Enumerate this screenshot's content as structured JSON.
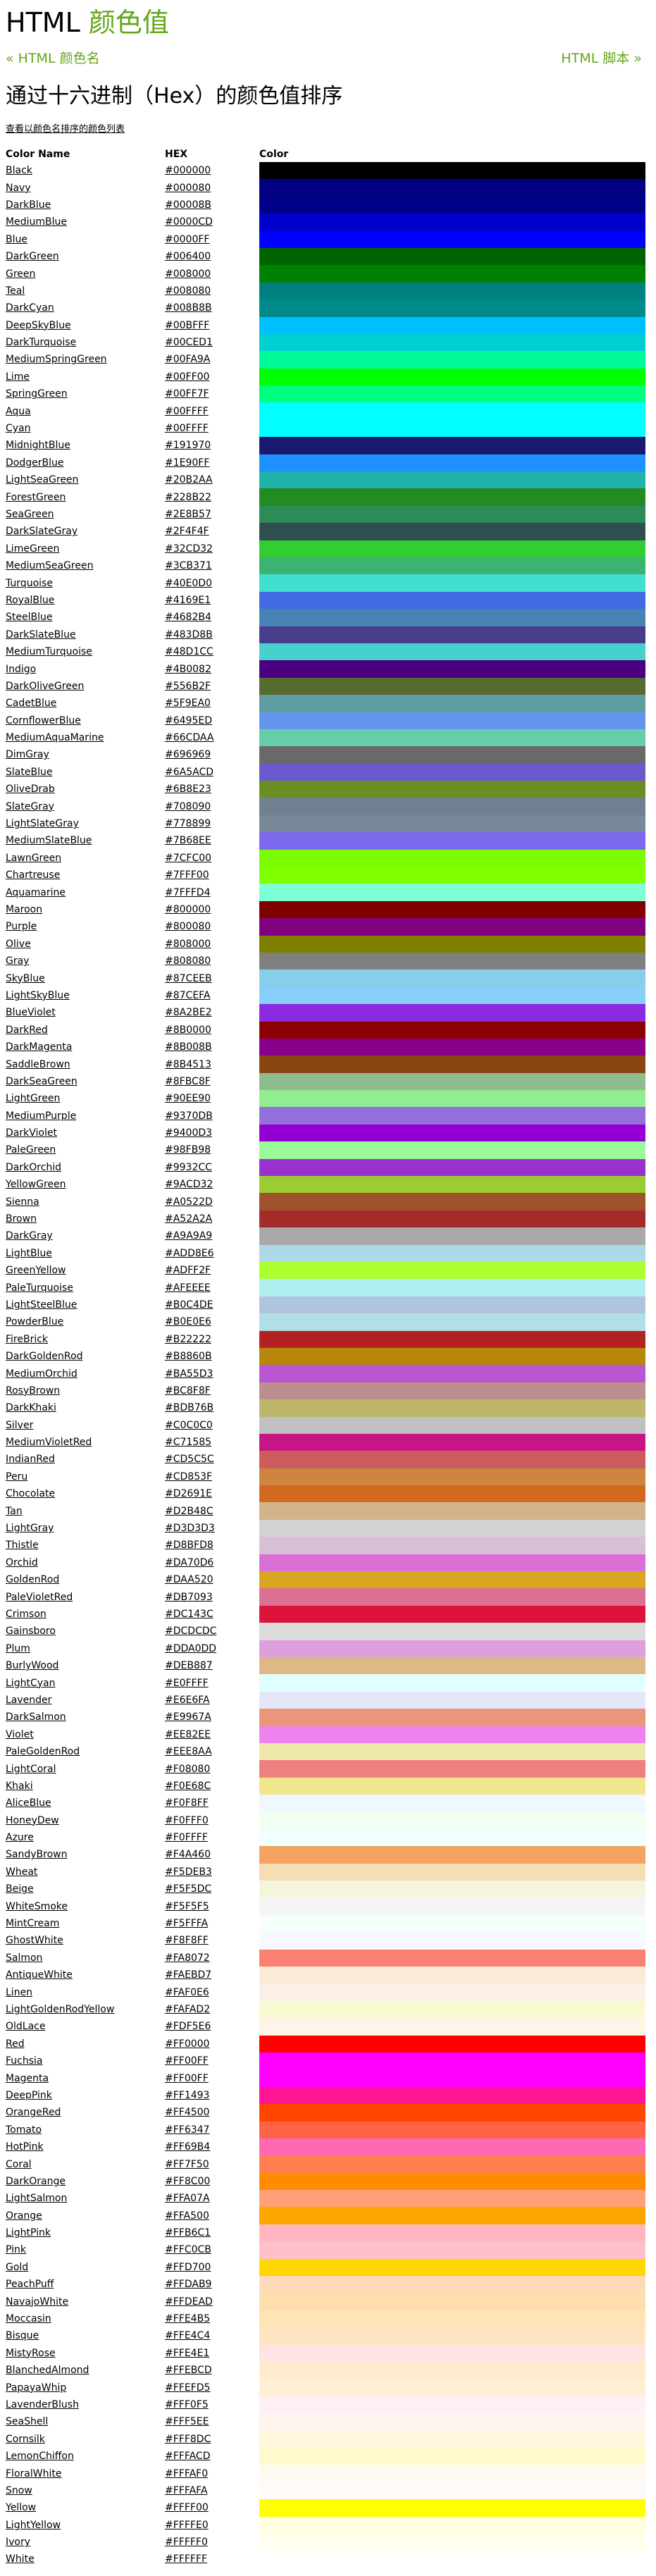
{
  "heading": {
    "prefix": "HTML ",
    "accent": "颜色值"
  },
  "nav": {
    "prev": "« HTML 颜色名",
    "next": "HTML 脚本 »"
  },
  "subtitle": "通过十六进制（Hex）的颜色值排序",
  "view_by_name_link": "查看以颜色名排序的颜色列表",
  "table": {
    "headers": [
      "Color Name",
      "HEX",
      "Color"
    ]
  },
  "colors": [
    {
      "name": "Black",
      "hex": "#000000"
    },
    {
      "name": "Navy",
      "hex": "#000080"
    },
    {
      "name": "DarkBlue",
      "hex": "#00008B"
    },
    {
      "name": "MediumBlue",
      "hex": "#0000CD"
    },
    {
      "name": "Blue",
      "hex": "#0000FF"
    },
    {
      "name": "DarkGreen",
      "hex": "#006400"
    },
    {
      "name": "Green",
      "hex": "#008000"
    },
    {
      "name": "Teal",
      "hex": "#008080"
    },
    {
      "name": "DarkCyan",
      "hex": "#008B8B"
    },
    {
      "name": "DeepSkyBlue",
      "hex": "#00BFFF"
    },
    {
      "name": "DarkTurquoise",
      "hex": "#00CED1"
    },
    {
      "name": "MediumSpringGreen",
      "hex": "#00FA9A"
    },
    {
      "name": "Lime",
      "hex": "#00FF00"
    },
    {
      "name": "SpringGreen",
      "hex": "#00FF7F"
    },
    {
      "name": "Aqua",
      "hex": "#00FFFF"
    },
    {
      "name": "Cyan",
      "hex": "#00FFFF"
    },
    {
      "name": "MidnightBlue",
      "hex": "#191970"
    },
    {
      "name": "DodgerBlue",
      "hex": "#1E90FF"
    },
    {
      "name": "LightSeaGreen",
      "hex": "#20B2AA"
    },
    {
      "name": "ForestGreen",
      "hex": "#228B22"
    },
    {
      "name": "SeaGreen",
      "hex": "#2E8B57"
    },
    {
      "name": "DarkSlateGray",
      "hex": "#2F4F4F"
    },
    {
      "name": "LimeGreen",
      "hex": "#32CD32"
    },
    {
      "name": "MediumSeaGreen",
      "hex": "#3CB371"
    },
    {
      "name": "Turquoise",
      "hex": "#40E0D0"
    },
    {
      "name": "RoyalBlue",
      "hex": "#4169E1"
    },
    {
      "name": "SteelBlue",
      "hex": "#4682B4"
    },
    {
      "name": "DarkSlateBlue",
      "hex": "#483D8B"
    },
    {
      "name": "MediumTurquoise",
      "hex": "#48D1CC"
    },
    {
      "name": "Indigo ",
      "hex": "#4B0082"
    },
    {
      "name": "DarkOliveGreen",
      "hex": "#556B2F"
    },
    {
      "name": "CadetBlue",
      "hex": "#5F9EA0"
    },
    {
      "name": "CornflowerBlue",
      "hex": "#6495ED"
    },
    {
      "name": "MediumAquaMarine",
      "hex": "#66CDAA"
    },
    {
      "name": "DimGray",
      "hex": "#696969"
    },
    {
      "name": "SlateBlue",
      "hex": "#6A5ACD"
    },
    {
      "name": "OliveDrab",
      "hex": "#6B8E23"
    },
    {
      "name": "SlateGray",
      "hex": "#708090"
    },
    {
      "name": "LightSlateGray",
      "hex": "#778899"
    },
    {
      "name": "MediumSlateBlue",
      "hex": "#7B68EE"
    },
    {
      "name": "LawnGreen",
      "hex": "#7CFC00"
    },
    {
      "name": "Chartreuse",
      "hex": "#7FFF00"
    },
    {
      "name": "Aquamarine",
      "hex": "#7FFFD4"
    },
    {
      "name": "Maroon",
      "hex": "#800000"
    },
    {
      "name": "Purple",
      "hex": "#800080"
    },
    {
      "name": "Olive",
      "hex": "#808000"
    },
    {
      "name": "Gray",
      "hex": "#808080"
    },
    {
      "name": "SkyBlue",
      "hex": "#87CEEB"
    },
    {
      "name": "LightSkyBlue",
      "hex": "#87CEFA"
    },
    {
      "name": "BlueViolet",
      "hex": "#8A2BE2"
    },
    {
      "name": "DarkRed",
      "hex": "#8B0000"
    },
    {
      "name": "DarkMagenta",
      "hex": "#8B008B"
    },
    {
      "name": "SaddleBrown",
      "hex": "#8B4513"
    },
    {
      "name": "DarkSeaGreen",
      "hex": "#8FBC8F"
    },
    {
      "name": "LightGreen",
      "hex": "#90EE90"
    },
    {
      "name": "MediumPurple",
      "hex": "#9370DB"
    },
    {
      "name": "DarkViolet",
      "hex": "#9400D3"
    },
    {
      "name": "PaleGreen",
      "hex": "#98FB98"
    },
    {
      "name": "DarkOrchid",
      "hex": "#9932CC"
    },
    {
      "name": "YellowGreen",
      "hex": "#9ACD32"
    },
    {
      "name": "Sienna",
      "hex": "#A0522D"
    },
    {
      "name": "Brown",
      "hex": "#A52A2A"
    },
    {
      "name": "DarkGray",
      "hex": "#A9A9A9"
    },
    {
      "name": "LightBlue",
      "hex": "#ADD8E6"
    },
    {
      "name": "GreenYellow",
      "hex": "#ADFF2F"
    },
    {
      "name": "PaleTurquoise",
      "hex": "#AFEEEE"
    },
    {
      "name": "LightSteelBlue",
      "hex": "#B0C4DE"
    },
    {
      "name": "PowderBlue",
      "hex": "#B0E0E6"
    },
    {
      "name": "FireBrick",
      "hex": "#B22222"
    },
    {
      "name": "DarkGoldenRod",
      "hex": "#B8860B"
    },
    {
      "name": "MediumOrchid",
      "hex": "#BA55D3"
    },
    {
      "name": "RosyBrown",
      "hex": "#BC8F8F"
    },
    {
      "name": "DarkKhaki",
      "hex": "#BDB76B"
    },
    {
      "name": "Silver",
      "hex": "#C0C0C0"
    },
    {
      "name": "MediumVioletRed",
      "hex": "#C71585"
    },
    {
      "name": "IndianRed ",
      "hex": "#CD5C5C"
    },
    {
      "name": "Peru",
      "hex": "#CD853F"
    },
    {
      "name": "Chocolate",
      "hex": "#D2691E"
    },
    {
      "name": "Tan",
      "hex": "#D2B48C"
    },
    {
      "name": "LightGray",
      "hex": "#D3D3D3"
    },
    {
      "name": "Thistle",
      "hex": "#D8BFD8"
    },
    {
      "name": "Orchid",
      "hex": "#DA70D6"
    },
    {
      "name": "GoldenRod",
      "hex": "#DAA520"
    },
    {
      "name": "PaleVioletRed",
      "hex": "#DB7093"
    },
    {
      "name": "Crimson",
      "hex": "#DC143C"
    },
    {
      "name": "Gainsboro",
      "hex": "#DCDCDC"
    },
    {
      "name": "Plum",
      "hex": "#DDA0DD"
    },
    {
      "name": "BurlyWood",
      "hex": "#DEB887"
    },
    {
      "name": "LightCyan",
      "hex": "#E0FFFF"
    },
    {
      "name": "Lavender",
      "hex": "#E6E6FA"
    },
    {
      "name": "DarkSalmon",
      "hex": "#E9967A"
    },
    {
      "name": "Violet",
      "hex": "#EE82EE"
    },
    {
      "name": "PaleGoldenRod",
      "hex": "#EEE8AA"
    },
    {
      "name": "LightCoral",
      "hex": "#F08080"
    },
    {
      "name": "Khaki",
      "hex": "#F0E68C"
    },
    {
      "name": "AliceBlue",
      "hex": "#F0F8FF"
    },
    {
      "name": "HoneyDew",
      "hex": "#F0FFF0"
    },
    {
      "name": "Azure",
      "hex": "#F0FFFF"
    },
    {
      "name": "SandyBrown",
      "hex": "#F4A460"
    },
    {
      "name": "Wheat",
      "hex": "#F5DEB3"
    },
    {
      "name": "Beige",
      "hex": "#F5F5DC"
    },
    {
      "name": "WhiteSmoke",
      "hex": "#F5F5F5"
    },
    {
      "name": "MintCream",
      "hex": "#F5FFFA"
    },
    {
      "name": "GhostWhite",
      "hex": "#F8F8FF"
    },
    {
      "name": "Salmon",
      "hex": "#FA8072"
    },
    {
      "name": "AntiqueWhite",
      "hex": "#FAEBD7"
    },
    {
      "name": "Linen",
      "hex": "#FAF0E6"
    },
    {
      "name": "LightGoldenRodYellow",
      "hex": "#FAFAD2"
    },
    {
      "name": "OldLace",
      "hex": "#FDF5E6"
    },
    {
      "name": "Red",
      "hex": "#FF0000"
    },
    {
      "name": "Fuchsia",
      "hex": "#FF00FF"
    },
    {
      "name": "Magenta",
      "hex": "#FF00FF"
    },
    {
      "name": "DeepPink",
      "hex": "#FF1493"
    },
    {
      "name": "OrangeRed",
      "hex": "#FF4500"
    },
    {
      "name": "Tomato",
      "hex": "#FF6347"
    },
    {
      "name": "HotPink",
      "hex": "#FF69B4"
    },
    {
      "name": "Coral",
      "hex": "#FF7F50"
    },
    {
      "name": "DarkOrange",
      "hex": "#FF8C00"
    },
    {
      "name": "LightSalmon",
      "hex": "#FFA07A"
    },
    {
      "name": "Orange",
      "hex": "#FFA500"
    },
    {
      "name": "LightPink",
      "hex": "#FFB6C1"
    },
    {
      "name": "Pink",
      "hex": "#FFC0CB"
    },
    {
      "name": "Gold",
      "hex": "#FFD700"
    },
    {
      "name": "PeachPuff",
      "hex": "#FFDAB9"
    },
    {
      "name": "NavajoWhite",
      "hex": "#FFDEAD"
    },
    {
      "name": "Moccasin",
      "hex": "#FFE4B5"
    },
    {
      "name": "Bisque",
      "hex": "#FFE4C4"
    },
    {
      "name": "MistyRose",
      "hex": "#FFE4E1"
    },
    {
      "name": "BlanchedAlmond",
      "hex": "#FFEBCD"
    },
    {
      "name": "PapayaWhip",
      "hex": "#FFEFD5"
    },
    {
      "name": "LavenderBlush",
      "hex": "#FFF0F5"
    },
    {
      "name": "SeaShell",
      "hex": "#FFF5EE"
    },
    {
      "name": "Cornsilk",
      "hex": "#FFF8DC"
    },
    {
      "name": "LemonChiffon",
      "hex": "#FFFACD"
    },
    {
      "name": "FloralWhite",
      "hex": "#FFFAF0"
    },
    {
      "name": "Snow",
      "hex": "#FFFAFA"
    },
    {
      "name": "Yellow",
      "hex": "#FFFF00"
    },
    {
      "name": "LightYellow",
      "hex": "#FFFFE0"
    },
    {
      "name": "Ivory",
      "hex": "#FFFFF0"
    },
    {
      "name": "White",
      "hex": "#FFFFFF"
    }
  ]
}
